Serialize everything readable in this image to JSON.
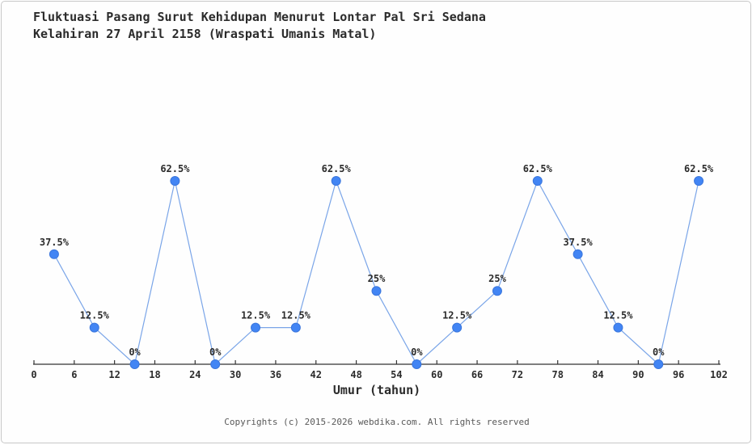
{
  "header": {
    "title_line1": "Fluktuasi Pasang Surut Kehidupan Menurut Lontar Pal Sri Sedana",
    "title_line2": "Kelahiran 27 April 2158 (Wraspati Umanis Matal)"
  },
  "chart_data": {
    "type": "line",
    "title": "Fluktuasi Pasang Surut Kehidupan Menurut Lontar Pal Sri Sedana Kelahiran 27 April 2158 (Wraspati Umanis Matal)",
    "xlabel": "Umur (tahun)",
    "ylabel": "",
    "x": [
      3,
      9,
      15,
      21,
      27,
      33,
      39,
      45,
      51,
      57,
      63,
      69,
      75,
      81,
      87,
      93,
      99
    ],
    "values": [
      37.5,
      12.5,
      0,
      62.5,
      0,
      12.5,
      12.5,
      62.5,
      25,
      0,
      12.5,
      25,
      62.5,
      37.5,
      12.5,
      0,
      62.5
    ],
    "point_labels": [
      "37.5%",
      "12.5%",
      "0%",
      "62.5%",
      "0%",
      "12.5%",
      "12.5%",
      "62.5%",
      "25%",
      "0%",
      "12.5%",
      "25%",
      "62.5%",
      "37.5%",
      "12.5%",
      "0%",
      "62.5%"
    ],
    "x_ticks": [
      0,
      6,
      12,
      18,
      24,
      30,
      36,
      42,
      48,
      54,
      60,
      66,
      72,
      78,
      84,
      90,
      96,
      102
    ],
    "xlim": [
      0,
      102
    ],
    "ylim": [
      0,
      70
    ],
    "grid": false,
    "legend_position": "none",
    "colors": {
      "marker": "#4285f4",
      "marker_edge": "#3a76dd",
      "line": "#7aa5e8",
      "axis": "#333333"
    }
  },
  "footer": {
    "copyright": "Copyrights (c) 2015-2026 webdika.com. All rights reserved"
  }
}
